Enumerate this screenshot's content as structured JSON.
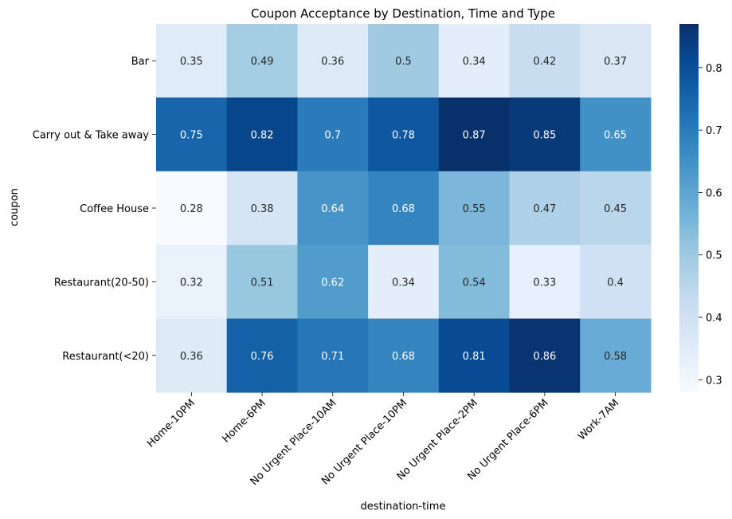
{
  "chart_data": {
    "type": "heatmap",
    "title": "Coupon Acceptance by Destination, Time and Type",
    "xlabel": "destination-time",
    "ylabel": "coupon",
    "x_categories": [
      "Home-10PM",
      "Home-6PM",
      "No Urgent Place-10AM",
      "No Urgent Place-10PM",
      "No Urgent Place-2PM",
      "No Urgent Place-6PM",
      "Work-7AM"
    ],
    "y_categories": [
      "Bar",
      "Carry out & Take away",
      "Coffee House",
      "Restaurant(20-50)",
      "Restaurant(<20)"
    ],
    "values": [
      [
        0.35,
        0.49,
        0.36,
        0.5,
        0.34,
        0.42,
        0.37
      ],
      [
        0.75,
        0.82,
        0.7,
        0.78,
        0.87,
        0.85,
        0.65
      ],
      [
        0.28,
        0.38,
        0.64,
        0.68,
        0.55,
        0.47,
        0.45
      ],
      [
        0.32,
        0.51,
        0.62,
        0.34,
        0.54,
        0.33,
        0.4
      ],
      [
        0.36,
        0.76,
        0.71,
        0.68,
        0.81,
        0.86,
        0.58
      ]
    ],
    "colormap": "Blues",
    "colorbar_range": [
      0.28,
      0.87
    ],
    "colorbar_ticks": [
      "0.3",
      "0.4",
      "0.5",
      "0.6",
      "0.7",
      "0.8"
    ],
    "annotations": true
  }
}
